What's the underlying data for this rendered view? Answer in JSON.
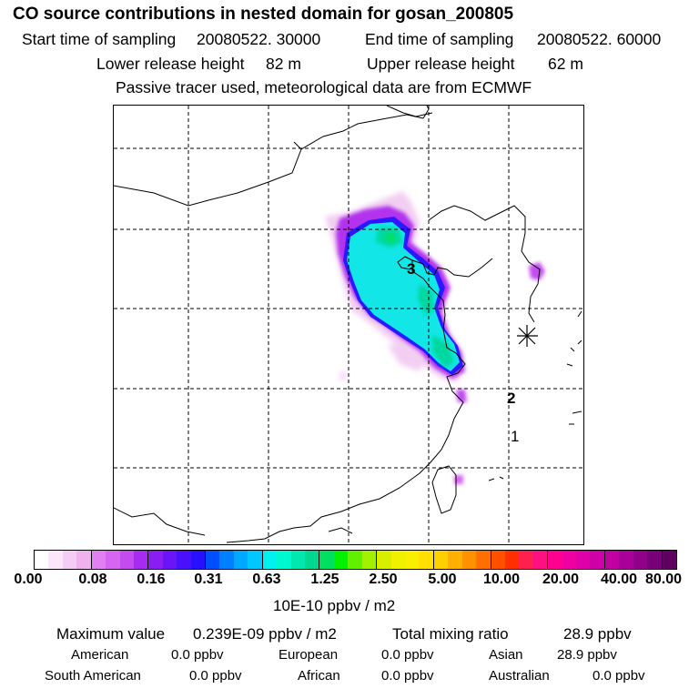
{
  "header": {
    "title": "CO  source contributions in nested domain for gosan_200805",
    "start_label": "Start time of sampling",
    "start_value": "20080522. 30000",
    "end_label": "End time of sampling",
    "end_value": "20080522. 60000",
    "lower_label": "Lower release height",
    "lower_value": "82 m",
    "upper_label": "Upper release height",
    "upper_value": "62 m",
    "note": "Passive tracer used, meteorological data are from ECMWF"
  },
  "map": {
    "markers": [
      {
        "label": "3"
      },
      {
        "label": "2"
      },
      {
        "label": "1"
      }
    ],
    "station_marker": "asterisk-icon"
  },
  "colorbar": {
    "ticks": [
      "0.00",
      "0.08",
      "0.16",
      "0.31",
      "0.63",
      "1.25",
      "2.50",
      "5.00",
      "10.00",
      "20.00",
      "40.00",
      "80.00"
    ],
    "units": "10E-10 ppbv / m2",
    "colors": [
      "#ffffff",
      "#fbe6fb",
      "#f5ccf5",
      "#efb2ef",
      "#e180f2",
      "#d566f0",
      "#c24cf0",
      "#a52cf0",
      "#8a1cf4",
      "#6a14f8",
      "#4a10fc",
      "#2810ff",
      "#0050ff",
      "#0080ff",
      "#00a8ff",
      "#00c8ff",
      "#00f0f0",
      "#00f8d0",
      "#00e8b0",
      "#00d890",
      "#00e060",
      "#00f000",
      "#60f000",
      "#a0f000",
      "#d8f000",
      "#f0f000",
      "#f8f000",
      "#ffe000",
      "#ffd000",
      "#ffb000",
      "#ff9000",
      "#ff7000",
      "#ff5000",
      "#ff3000",
      "#ff2050",
      "#ff1080",
      "#ff0090",
      "#f000a0",
      "#e000a8",
      "#d000a8",
      "#c000a0",
      "#a80098",
      "#900088",
      "#780078",
      "#600060"
    ]
  },
  "summary": {
    "max_label": "Maximum value",
    "max_value": "0.239E-09 ppbv / m2",
    "total_label": "Total mixing ratio",
    "total_value": "28.9 ppbv",
    "regions": [
      {
        "name": "American",
        "value": "0.0 ppbv"
      },
      {
        "name": "European",
        "value": "0.0 ppbv"
      },
      {
        "name": "Asian",
        "value": "28.9 ppbv"
      },
      {
        "name": "South American",
        "value": "0.0 ppbv"
      },
      {
        "name": "African",
        "value": "0.0 ppbv"
      },
      {
        "name": "Australian",
        "value": "0.0 ppbv"
      }
    ]
  }
}
